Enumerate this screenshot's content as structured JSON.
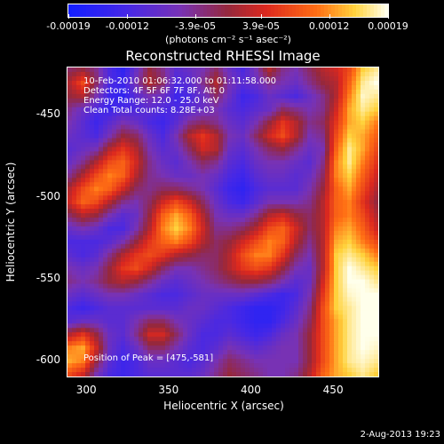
{
  "chart_data": {
    "type": "heatmap",
    "title": "Reconstructed RHESSI Image",
    "xlabel": "Heliocentric X (arcsec)",
    "ylabel": "Heliocentric Y (arcsec)",
    "xlim": [
      288,
      478
    ],
    "ylim": [
      -611,
      -421
    ],
    "x_ticks": [
      300,
      350,
      400,
      450
    ],
    "y_ticks": [
      -450,
      -500,
      -550,
      -600
    ],
    "colorbar": {
      "ticks": [
        "-0.00019",
        "-0.00012",
        "-3.9e-05",
        "3.9e-05",
        "0.00012",
        "0.00019"
      ],
      "tick_values": [
        -0.00019,
        -0.00012,
        -3.9e-05,
        3.9e-05,
        0.00012,
        0.00019
      ],
      "range": [
        -0.00019,
        0.00019
      ],
      "units": "(photons cm⁻² s⁻¹ asec⁻²)"
    },
    "annotations": [
      "10-Feb-2010 01:06:32.000 to 01:11:58.000",
      "Detectors: 4F 5F 6F 7F 8F, Att 0",
      "Energy Range: 12.0 - 25.0 keV",
      "Clean    Total counts: 8.28E+03"
    ],
    "peak_label": "Position of Peak = [475,-581]",
    "peak": {
      "x": 475,
      "y": -581
    },
    "intensity_grid_range": {
      "x": [
        288,
        478
      ],
      "y": [
        -611,
        -421
      ]
    },
    "intensity_grid": [
      [
        0.45,
        0.5,
        0.4,
        0.2,
        0.1,
        0.3,
        0.5,
        0.4,
        0.25,
        0.3,
        0.35,
        0.45,
        0.3,
        0.2,
        0.35,
        0.55,
        0.4,
        0.35,
        0.45,
        0.55,
        0.6,
        0.7,
        0.9,
        0.95
      ],
      [
        0.55,
        0.7,
        0.45,
        0.2,
        0.15,
        0.35,
        0.55,
        0.45,
        0.2,
        0.25,
        0.4,
        0.55,
        0.35,
        0.25,
        0.3,
        0.4,
        0.35,
        0.3,
        0.4,
        0.5,
        0.55,
        0.75,
        0.95,
        1.0
      ],
      [
        0.5,
        0.55,
        0.35,
        0.15,
        0.1,
        0.25,
        0.35,
        0.3,
        0.15,
        0.2,
        0.3,
        0.45,
        0.3,
        0.15,
        0.2,
        0.3,
        0.25,
        0.2,
        0.3,
        0.4,
        0.55,
        0.8,
        0.98,
        0.95
      ],
      [
        0.4,
        0.3,
        0.2,
        0.15,
        0.2,
        0.2,
        0.25,
        0.2,
        0.2,
        0.25,
        0.3,
        0.35,
        0.25,
        0.2,
        0.25,
        0.3,
        0.45,
        0.4,
        0.35,
        0.4,
        0.6,
        0.85,
        0.95,
        0.9
      ],
      [
        0.35,
        0.25,
        0.15,
        0.25,
        0.35,
        0.3,
        0.2,
        0.15,
        0.25,
        0.4,
        0.45,
        0.4,
        0.3,
        0.25,
        0.35,
        0.5,
        0.65,
        0.55,
        0.4,
        0.45,
        0.65,
        0.85,
        0.9,
        0.8
      ],
      [
        0.3,
        0.25,
        0.2,
        0.35,
        0.5,
        0.45,
        0.3,
        0.2,
        0.35,
        0.55,
        0.65,
        0.55,
        0.35,
        0.3,
        0.45,
        0.6,
        0.7,
        0.55,
        0.35,
        0.4,
        0.7,
        0.9,
        0.85,
        0.75
      ],
      [
        0.25,
        0.3,
        0.35,
        0.55,
        0.65,
        0.55,
        0.35,
        0.25,
        0.3,
        0.45,
        0.6,
        0.55,
        0.3,
        0.25,
        0.35,
        0.45,
        0.5,
        0.4,
        0.3,
        0.35,
        0.75,
        0.95,
        0.85,
        0.7
      ],
      [
        0.3,
        0.4,
        0.55,
        0.7,
        0.75,
        0.6,
        0.4,
        0.3,
        0.25,
        0.35,
        0.45,
        0.4,
        0.25,
        0.2,
        0.3,
        0.35,
        0.35,
        0.3,
        0.25,
        0.4,
        0.8,
        0.95,
        0.8,
        0.65
      ],
      [
        0.4,
        0.55,
        0.7,
        0.8,
        0.75,
        0.55,
        0.4,
        0.35,
        0.3,
        0.3,
        0.35,
        0.3,
        0.2,
        0.15,
        0.25,
        0.3,
        0.3,
        0.25,
        0.3,
        0.45,
        0.8,
        0.9,
        0.75,
        0.6
      ],
      [
        0.55,
        0.7,
        0.8,
        0.75,
        0.6,
        0.45,
        0.4,
        0.45,
        0.45,
        0.4,
        0.35,
        0.25,
        0.15,
        0.1,
        0.2,
        0.25,
        0.25,
        0.25,
        0.35,
        0.5,
        0.75,
        0.85,
        0.7,
        0.55
      ],
      [
        0.6,
        0.75,
        0.7,
        0.55,
        0.4,
        0.35,
        0.45,
        0.6,
        0.7,
        0.6,
        0.45,
        0.3,
        0.2,
        0.15,
        0.25,
        0.35,
        0.35,
        0.35,
        0.4,
        0.55,
        0.75,
        0.8,
        0.65,
        0.5
      ],
      [
        0.45,
        0.55,
        0.5,
        0.35,
        0.25,
        0.3,
        0.5,
        0.75,
        0.85,
        0.75,
        0.55,
        0.35,
        0.3,
        0.3,
        0.4,
        0.55,
        0.6,
        0.5,
        0.45,
        0.55,
        0.75,
        0.8,
        0.7,
        0.55
      ],
      [
        0.3,
        0.35,
        0.3,
        0.2,
        0.2,
        0.35,
        0.55,
        0.8,
        0.9,
        0.8,
        0.6,
        0.4,
        0.4,
        0.45,
        0.55,
        0.7,
        0.75,
        0.6,
        0.45,
        0.55,
        0.8,
        0.85,
        0.75,
        0.6
      ],
      [
        0.2,
        0.2,
        0.2,
        0.25,
        0.35,
        0.5,
        0.65,
        0.75,
        0.8,
        0.7,
        0.55,
        0.45,
        0.5,
        0.6,
        0.7,
        0.8,
        0.75,
        0.55,
        0.4,
        0.55,
        0.85,
        0.9,
        0.8,
        0.7
      ],
      [
        0.25,
        0.2,
        0.25,
        0.4,
        0.55,
        0.65,
        0.7,
        0.65,
        0.55,
        0.5,
        0.45,
        0.45,
        0.55,
        0.7,
        0.8,
        0.8,
        0.65,
        0.45,
        0.35,
        0.55,
        0.9,
        0.95,
        0.9,
        0.8
      ],
      [
        0.35,
        0.3,
        0.35,
        0.5,
        0.65,
        0.7,
        0.6,
        0.45,
        0.35,
        0.35,
        0.4,
        0.45,
        0.55,
        0.65,
        0.7,
        0.65,
        0.5,
        0.35,
        0.3,
        0.55,
        0.9,
        1.0,
        0.95,
        0.9
      ],
      [
        0.4,
        0.35,
        0.4,
        0.5,
        0.55,
        0.5,
        0.4,
        0.3,
        0.25,
        0.3,
        0.35,
        0.4,
        0.45,
        0.5,
        0.5,
        0.45,
        0.35,
        0.25,
        0.3,
        0.6,
        0.9,
        1.0,
        1.0,
        0.95
      ],
      [
        0.3,
        0.25,
        0.3,
        0.35,
        0.35,
        0.3,
        0.25,
        0.2,
        0.2,
        0.25,
        0.3,
        0.3,
        0.3,
        0.3,
        0.25,
        0.2,
        0.15,
        0.2,
        0.35,
        0.65,
        0.9,
        0.98,
        1.0,
        1.0
      ],
      [
        0.2,
        0.15,
        0.2,
        0.25,
        0.25,
        0.25,
        0.25,
        0.25,
        0.25,
        0.3,
        0.3,
        0.25,
        0.2,
        0.15,
        0.1,
        0.1,
        0.15,
        0.25,
        0.4,
        0.7,
        0.9,
        0.95,
        1.0,
        1.0
      ],
      [
        0.25,
        0.3,
        0.3,
        0.25,
        0.25,
        0.35,
        0.45,
        0.45,
        0.35,
        0.3,
        0.25,
        0.2,
        0.2,
        0.15,
        0.1,
        0.1,
        0.2,
        0.3,
        0.45,
        0.7,
        0.85,
        0.95,
        1.0,
        1.0
      ],
      [
        0.55,
        0.65,
        0.5,
        0.3,
        0.25,
        0.4,
        0.6,
        0.6,
        0.45,
        0.3,
        0.2,
        0.2,
        0.25,
        0.2,
        0.15,
        0.2,
        0.3,
        0.35,
        0.5,
        0.7,
        0.85,
        0.95,
        1.0,
        1.0
      ],
      [
        0.8,
        0.85,
        0.6,
        0.3,
        0.2,
        0.3,
        0.45,
        0.45,
        0.35,
        0.25,
        0.2,
        0.25,
        0.35,
        0.3,
        0.25,
        0.3,
        0.35,
        0.35,
        0.5,
        0.7,
        0.85,
        0.95,
        1.0,
        0.98
      ],
      [
        0.85,
        0.8,
        0.5,
        0.25,
        0.15,
        0.2,
        0.3,
        0.3,
        0.25,
        0.2,
        0.25,
        0.35,
        0.45,
        0.4,
        0.35,
        0.35,
        0.35,
        0.35,
        0.5,
        0.7,
        0.85,
        0.95,
        0.98,
        0.95
      ],
      [
        0.7,
        0.6,
        0.35,
        0.2,
        0.15,
        0.2,
        0.25,
        0.25,
        0.25,
        0.25,
        0.3,
        0.4,
        0.5,
        0.45,
        0.4,
        0.35,
        0.35,
        0.4,
        0.55,
        0.75,
        0.85,
        0.9,
        0.95,
        0.9
      ]
    ]
  },
  "footer_date": "2-Aug-2013 19:23"
}
